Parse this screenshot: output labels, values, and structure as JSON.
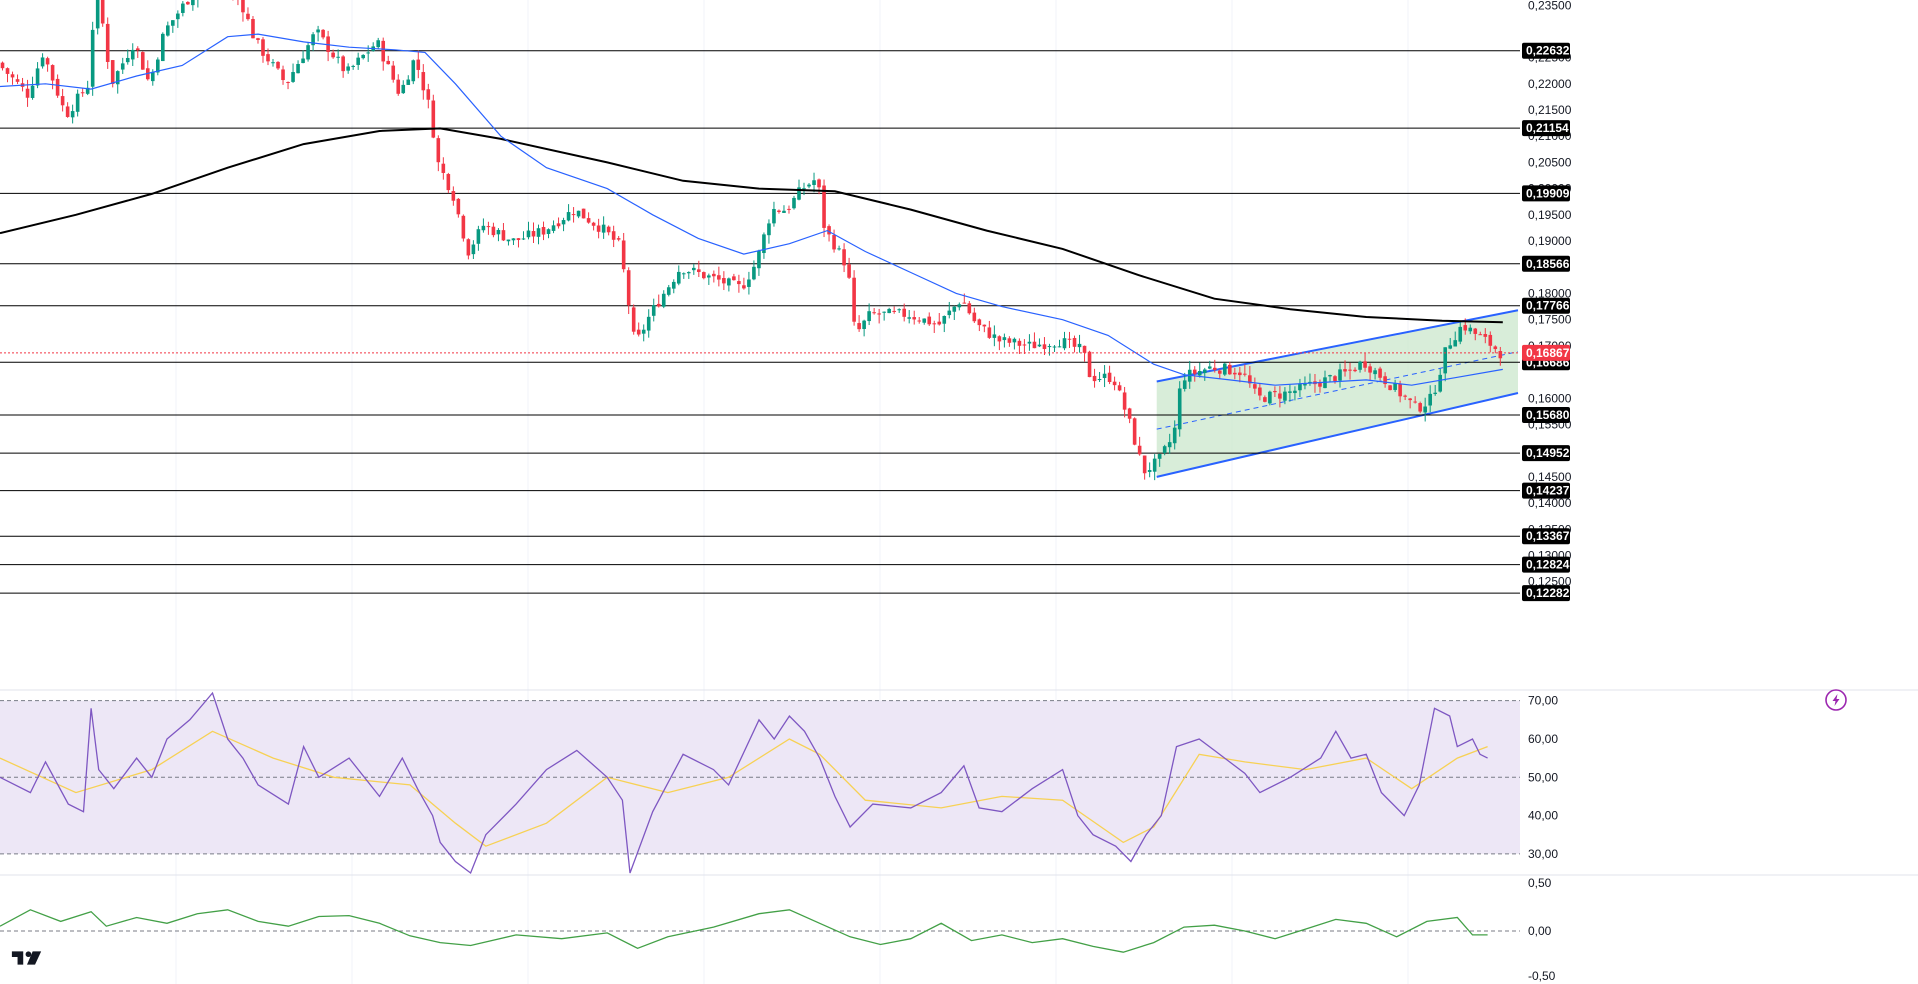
{
  "chart_data": [
    {
      "type": "candlestick",
      "ylim": [
        0.1215,
        0.236
      ],
      "y_ticks": [
        {
          "value": 0.235,
          "label": "0,23500"
        },
        {
          "value": 0.225,
          "label": "0,22500"
        },
        {
          "value": 0.22,
          "label": "0,22000"
        },
        {
          "value": 0.215,
          "label": "0,21500"
        },
        {
          "value": 0.21,
          "label": "0,21000"
        },
        {
          "value": 0.205,
          "label": "0,20500"
        },
        {
          "value": 0.2,
          "label": "0,20000"
        },
        {
          "value": 0.195,
          "label": "0,19500"
        },
        {
          "value": 0.19,
          "label": "0,19000"
        },
        {
          "value": 0.18,
          "label": "0,18000"
        },
        {
          "value": 0.175,
          "label": "0,17500"
        },
        {
          "value": 0.17,
          "label": "0,17000"
        },
        {
          "value": 0.16,
          "label": "0,16000"
        },
        {
          "value": 0.155,
          "label": "0,15500"
        },
        {
          "value": 0.145,
          "label": "0,14500"
        },
        {
          "value": 0.14,
          "label": "0,14000"
        },
        {
          "value": 0.135,
          "label": "0,13500"
        },
        {
          "value": 0.13,
          "label": "0,13000"
        },
        {
          "value": 0.125,
          "label": "0,12500"
        }
      ],
      "levels": [
        {
          "value": 0.22632,
          "label": "0,22632"
        },
        {
          "value": 0.21154,
          "label": "0,21154"
        },
        {
          "value": 0.19909,
          "label": "0,19909"
        },
        {
          "value": 0.18566,
          "label": "0,18566"
        },
        {
          "value": 0.17766,
          "label": "0,17766"
        },
        {
          "value": 0.16686,
          "label": "0,16686"
        },
        {
          "value": 0.1568,
          "label": "0,15680"
        },
        {
          "value": 0.14952,
          "label": "0,14952"
        },
        {
          "value": 0.14237,
          "label": "0,14237"
        },
        {
          "value": 0.13367,
          "label": "0,13367"
        },
        {
          "value": 0.12824,
          "label": "0,12824"
        },
        {
          "value": 0.12282,
          "label": "0,12282"
        }
      ],
      "current_price": {
        "value": 0.16867,
        "label": "0,16867",
        "color": "#f23645"
      },
      "colors": {
        "up": "#089981",
        "down": "#f23645",
        "ma_fast": "#2962ff",
        "ma_slow": "#000000",
        "channel": "#2962ff",
        "channel_fill": "#c8e6c9"
      },
      "channel": {
        "start_index": 0.762,
        "end_index": 1.0,
        "upper": [
          0.1632,
          0.1768
        ],
        "lower": [
          0.145,
          0.161
        ],
        "mid": [
          0.1541,
          0.1689
        ]
      },
      "ma_slow": [
        [
          0.0,
          0.1915
        ],
        [
          0.05,
          0.195
        ],
        [
          0.1,
          0.199
        ],
        [
          0.15,
          0.204
        ],
        [
          0.2,
          0.2085
        ],
        [
          0.25,
          0.211
        ],
        [
          0.29,
          0.2115
        ],
        [
          0.33,
          0.2095
        ],
        [
          0.4,
          0.205
        ],
        [
          0.45,
          0.2015
        ],
        [
          0.5,
          0.2
        ],
        [
          0.55,
          0.1995
        ],
        [
          0.6,
          0.196
        ],
        [
          0.65,
          0.192
        ],
        [
          0.7,
          0.1885
        ],
        [
          0.75,
          0.1835
        ],
        [
          0.8,
          0.179
        ],
        [
          0.85,
          0.177
        ],
        [
          0.9,
          0.1755
        ],
        [
          0.95,
          0.1748
        ],
        [
          0.99,
          0.1745
        ]
      ],
      "ma_fast": [
        [
          0.0,
          0.2195
        ],
        [
          0.03,
          0.22
        ],
        [
          0.06,
          0.219
        ],
        [
          0.09,
          0.2215
        ],
        [
          0.12,
          0.2235
        ],
        [
          0.15,
          0.229
        ],
        [
          0.17,
          0.2295
        ],
        [
          0.2,
          0.228
        ],
        [
          0.23,
          0.227
        ],
        [
          0.26,
          0.2265
        ],
        [
          0.28,
          0.226
        ],
        [
          0.3,
          0.22
        ],
        [
          0.33,
          0.21
        ],
        [
          0.36,
          0.204
        ],
        [
          0.4,
          0.2
        ],
        [
          0.43,
          0.195
        ],
        [
          0.46,
          0.1905
        ],
        [
          0.49,
          0.1875
        ],
        [
          0.52,
          0.1895
        ],
        [
          0.545,
          0.192
        ],
        [
          0.57,
          0.188
        ],
        [
          0.6,
          0.184
        ],
        [
          0.63,
          0.18
        ],
        [
          0.66,
          0.1775
        ],
        [
          0.7,
          0.175
        ],
        [
          0.73,
          0.172
        ],
        [
          0.76,
          0.1665
        ],
        [
          0.78,
          0.1645
        ],
        [
          0.81,
          0.1635
        ],
        [
          0.84,
          0.1625
        ],
        [
          0.87,
          0.163
        ],
        [
          0.9,
          0.1635
        ],
        [
          0.93,
          0.1625
        ],
        [
          0.96,
          0.164
        ],
        [
          0.99,
          0.1655
        ]
      ],
      "price_path": [
        [
          0.0,
          0.224
        ],
        [
          0.02,
          0.218
        ],
        [
          0.03,
          0.226
        ],
        [
          0.045,
          0.214
        ],
        [
          0.06,
          0.22
        ],
        [
          0.065,
          0.24
        ],
        [
          0.075,
          0.22
        ],
        [
          0.09,
          0.228
        ],
        [
          0.1,
          0.22
        ],
        [
          0.11,
          0.23
        ],
        [
          0.125,
          0.236
        ],
        [
          0.14,
          0.24
        ],
        [
          0.16,
          0.236
        ],
        [
          0.17,
          0.228
        ],
        [
          0.19,
          0.22
        ],
        [
          0.21,
          0.23
        ],
        [
          0.23,
          0.222
        ],
        [
          0.25,
          0.228
        ],
        [
          0.265,
          0.218
        ],
        [
          0.275,
          0.225
        ],
        [
          0.285,
          0.215
        ],
        [
          0.29,
          0.205
        ],
        [
          0.3,
          0.199
        ],
        [
          0.31,
          0.188
        ],
        [
          0.32,
          0.193
        ],
        [
          0.34,
          0.19
        ],
        [
          0.36,
          0.192
        ],
        [
          0.38,
          0.196
        ],
        [
          0.4,
          0.192
        ],
        [
          0.41,
          0.189
        ],
        [
          0.42,
          0.17
        ],
        [
          0.43,
          0.176
        ],
        [
          0.45,
          0.185
        ],
        [
          0.47,
          0.183
        ],
        [
          0.49,
          0.181
        ],
        [
          0.5,
          0.186
        ],
        [
          0.51,
          0.196
        ],
        [
          0.52,
          0.196
        ],
        [
          0.53,
          0.2
        ],
        [
          0.54,
          0.202
        ],
        [
          0.545,
          0.192
        ],
        [
          0.55,
          0.19
        ],
        [
          0.56,
          0.185
        ],
        [
          0.565,
          0.172
        ],
        [
          0.575,
          0.176
        ],
        [
          0.6,
          0.176
        ],
        [
          0.62,
          0.174
        ],
        [
          0.635,
          0.179
        ],
        [
          0.645,
          0.174
        ],
        [
          0.66,
          0.171
        ],
        [
          0.68,
          0.17
        ],
        [
          0.7,
          0.171
        ],
        [
          0.715,
          0.169
        ],
        [
          0.72,
          0.164
        ],
        [
          0.735,
          0.164
        ],
        [
          0.745,
          0.156
        ],
        [
          0.755,
          0.146
        ],
        [
          0.765,
          0.148
        ],
        [
          0.775,
          0.153
        ],
        [
          0.78,
          0.164
        ],
        [
          0.8,
          0.166
        ],
        [
          0.82,
          0.165
        ],
        [
          0.83,
          0.16
        ],
        [
          0.85,
          0.161
        ],
        [
          0.87,
          0.163
        ],
        [
          0.89,
          0.165
        ],
        [
          0.9,
          0.167
        ],
        [
          0.92,
          0.162
        ],
        [
          0.935,
          0.158
        ],
        [
          0.945,
          0.16
        ],
        [
          0.955,
          0.17
        ],
        [
          0.965,
          0.174
        ],
        [
          0.975,
          0.172
        ],
        [
          0.985,
          0.17
        ],
        [
          0.99,
          0.1687
        ]
      ]
    },
    {
      "type": "line",
      "name": "rsi",
      "ylim": [
        25,
        72
      ],
      "y_ticks": [
        {
          "value": 70,
          "label": "70,00"
        },
        {
          "value": 60,
          "label": "60,00"
        },
        {
          "value": 50,
          "label": "50,00"
        },
        {
          "value": 40,
          "label": "40,00"
        },
        {
          "value": 30,
          "label": "30,00"
        }
      ],
      "bands": {
        "upper": 70,
        "middle": 50,
        "lower": 30
      },
      "colors": {
        "line": "#7e57c2",
        "signal": "#f7d154",
        "band": "#ede7f6"
      },
      "rsi": [
        [
          0.0,
          50
        ],
        [
          0.02,
          46
        ],
        [
          0.03,
          54
        ],
        [
          0.045,
          43
        ],
        [
          0.055,
          41
        ],
        [
          0.06,
          68
        ],
        [
          0.065,
          52
        ],
        [
          0.075,
          47
        ],
        [
          0.09,
          55
        ],
        [
          0.1,
          50
        ],
        [
          0.11,
          60
        ],
        [
          0.125,
          65
        ],
        [
          0.14,
          72
        ],
        [
          0.15,
          60
        ],
        [
          0.16,
          55
        ],
        [
          0.17,
          48
        ],
        [
          0.19,
          43
        ],
        [
          0.2,
          58
        ],
        [
          0.21,
          50
        ],
        [
          0.23,
          55
        ],
        [
          0.25,
          45
        ],
        [
          0.265,
          55
        ],
        [
          0.275,
          47
        ],
        [
          0.285,
          40
        ],
        [
          0.29,
          33
        ],
        [
          0.3,
          28
        ],
        [
          0.31,
          25
        ],
        [
          0.32,
          35
        ],
        [
          0.34,
          43
        ],
        [
          0.36,
          52
        ],
        [
          0.38,
          57
        ],
        [
          0.4,
          50
        ],
        [
          0.41,
          44
        ],
        [
          0.415,
          25
        ],
        [
          0.43,
          41
        ],
        [
          0.45,
          56
        ],
        [
          0.47,
          52
        ],
        [
          0.48,
          48
        ],
        [
          0.5,
          65
        ],
        [
          0.51,
          60
        ],
        [
          0.52,
          66
        ],
        [
          0.53,
          62
        ],
        [
          0.54,
          55
        ],
        [
          0.55,
          45
        ],
        [
          0.56,
          37
        ],
        [
          0.575,
          43
        ],
        [
          0.6,
          42
        ],
        [
          0.62,
          46
        ],
        [
          0.635,
          53
        ],
        [
          0.645,
          42
        ],
        [
          0.66,
          41
        ],
        [
          0.68,
          47
        ],
        [
          0.7,
          52
        ],
        [
          0.71,
          40
        ],
        [
          0.72,
          35
        ],
        [
          0.735,
          32
        ],
        [
          0.745,
          28
        ],
        [
          0.755,
          35
        ],
        [
          0.765,
          40
        ],
        [
          0.775,
          58
        ],
        [
          0.79,
          60
        ],
        [
          0.8,
          57
        ],
        [
          0.81,
          54
        ],
        [
          0.82,
          51
        ],
        [
          0.83,
          46
        ],
        [
          0.85,
          50
        ],
        [
          0.87,
          55
        ],
        [
          0.88,
          62
        ],
        [
          0.89,
          55
        ],
        [
          0.9,
          56
        ],
        [
          0.91,
          46
        ],
        [
          0.925,
          40
        ],
        [
          0.935,
          48
        ],
        [
          0.945,
          68
        ],
        [
          0.955,
          66
        ],
        [
          0.96,
          58
        ],
        [
          0.97,
          60
        ],
        [
          0.975,
          56
        ],
        [
          0.98,
          55
        ]
      ],
      "signal": [
        [
          0.0,
          55
        ],
        [
          0.05,
          46
        ],
        [
          0.1,
          52
        ],
        [
          0.14,
          62
        ],
        [
          0.18,
          55
        ],
        [
          0.22,
          50
        ],
        [
          0.27,
          48
        ],
        [
          0.3,
          38
        ],
        [
          0.32,
          32
        ],
        [
          0.36,
          38
        ],
        [
          0.4,
          50
        ],
        [
          0.44,
          46
        ],
        [
          0.48,
          50
        ],
        [
          0.52,
          60
        ],
        [
          0.54,
          56
        ],
        [
          0.57,
          44
        ],
        [
          0.62,
          42
        ],
        [
          0.66,
          45
        ],
        [
          0.7,
          44
        ],
        [
          0.74,
          33
        ],
        [
          0.76,
          37
        ],
        [
          0.79,
          56
        ],
        [
          0.82,
          54
        ],
        [
          0.86,
          52
        ],
        [
          0.9,
          55
        ],
        [
          0.93,
          47
        ],
        [
          0.96,
          55
        ],
        [
          0.98,
          58
        ]
      ]
    },
    {
      "type": "line",
      "name": "momentum",
      "ylim": [
        -0.55,
        0.55
      ],
      "y_ticks": [
        {
          "value": 0.5,
          "label": "0,50"
        },
        {
          "value": 0.0,
          "label": "0,00"
        },
        {
          "value": -0.5,
          "label": "-0,50"
        }
      ],
      "colors": {
        "line": "#43a047",
        "zero": "#787b86"
      },
      "series": [
        [
          0.0,
          0.05
        ],
        [
          0.02,
          0.22
        ],
        [
          0.04,
          0.1
        ],
        [
          0.06,
          0.2
        ],
        [
          0.07,
          0.05
        ],
        [
          0.09,
          0.14
        ],
        [
          0.11,
          0.08
        ],
        [
          0.13,
          0.18
        ],
        [
          0.15,
          0.22
        ],
        [
          0.17,
          0.1
        ],
        [
          0.19,
          0.05
        ],
        [
          0.21,
          0.15
        ],
        [
          0.23,
          0.16
        ],
        [
          0.25,
          0.08
        ],
        [
          0.27,
          -0.05
        ],
        [
          0.29,
          -0.12
        ],
        [
          0.31,
          -0.15
        ],
        [
          0.34,
          -0.04
        ],
        [
          0.37,
          -0.08
        ],
        [
          0.4,
          -0.02
        ],
        [
          0.42,
          -0.18
        ],
        [
          0.44,
          -0.06
        ],
        [
          0.47,
          0.04
        ],
        [
          0.5,
          0.18
        ],
        [
          0.52,
          0.22
        ],
        [
          0.54,
          0.08
        ],
        [
          0.56,
          -0.06
        ],
        [
          0.58,
          -0.14
        ],
        [
          0.6,
          -0.08
        ],
        [
          0.62,
          0.08
        ],
        [
          0.64,
          -0.1
        ],
        [
          0.66,
          -0.04
        ],
        [
          0.68,
          -0.12
        ],
        [
          0.7,
          -0.08
        ],
        [
          0.72,
          -0.16
        ],
        [
          0.74,
          -0.22
        ],
        [
          0.76,
          -0.12
        ],
        [
          0.78,
          0.04
        ],
        [
          0.8,
          0.06
        ],
        [
          0.82,
          0.0
        ],
        [
          0.84,
          -0.08
        ],
        [
          0.86,
          0.02
        ],
        [
          0.88,
          0.12
        ],
        [
          0.9,
          0.08
        ],
        [
          0.92,
          -0.06
        ],
        [
          0.94,
          0.1
        ],
        [
          0.96,
          0.14
        ],
        [
          0.97,
          -0.04
        ],
        [
          0.98,
          -0.04
        ]
      ]
    }
  ],
  "icons": {
    "logo": "tradingview-logo-icon",
    "alert": "lightning-icon"
  }
}
